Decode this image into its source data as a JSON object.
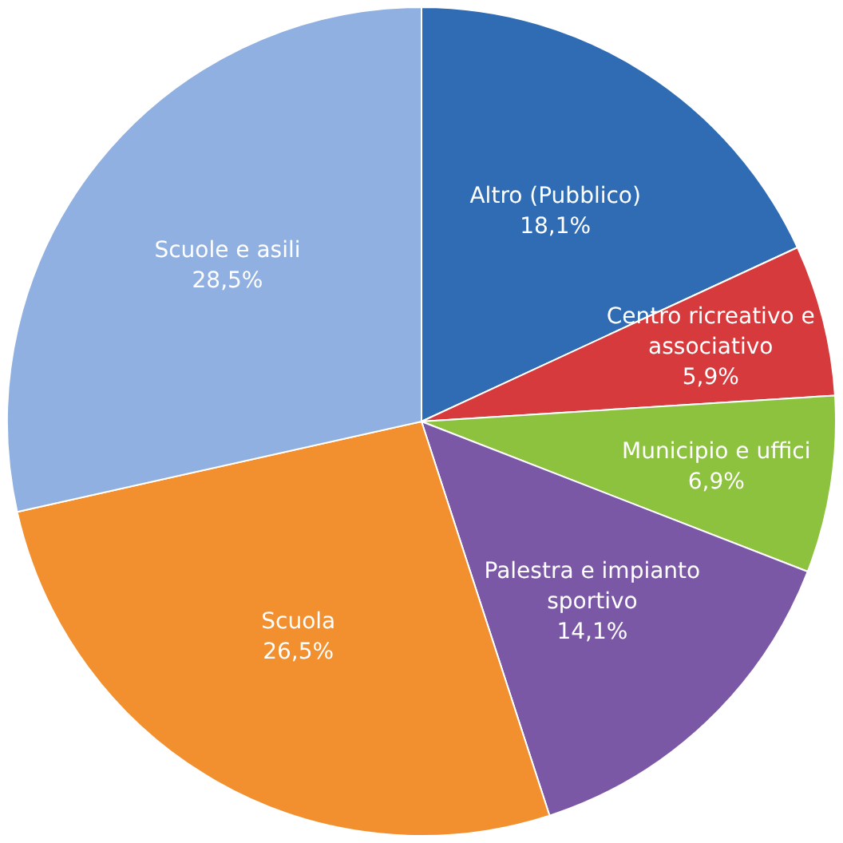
{
  "chart_data": {
    "type": "pie",
    "categories": [
      "Altro (Pubblico)",
      "Centro ricreativo e associativo",
      "Municipio e uffici",
      "Palestra e impianto sportivo",
      "Scuola",
      "Scuole e asili"
    ],
    "values": [
      18.1,
      5.9,
      6.9,
      14.1,
      26.5,
      28.5
    ],
    "colors": [
      "#2f6cb4",
      "#d63a3c",
      "#8cc23e",
      "#7a58a5",
      "#f28f2f",
      "#8fb0e0"
    ],
    "value_labels": [
      "18,1%",
      "5,9%",
      "6,9%",
      "14,1%",
      "26,5%",
      "28,5%"
    ],
    "legend": false
  }
}
